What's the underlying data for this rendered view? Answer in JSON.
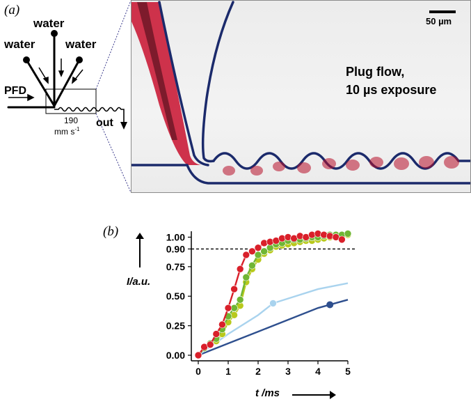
{
  "panel_a": {
    "label": "(a)",
    "schematic": {
      "water_top": "water",
      "water_left": "water",
      "water_right": "water",
      "pfd": "PFD",
      "speed_value": "190",
      "speed_unit": "mm s",
      "speed_unit_exp": "-1",
      "out": "out"
    },
    "photo": {
      "scale_bar_label": "50 µm",
      "caption_line1": "Plug flow,",
      "caption_line2": "10 µs exposure"
    }
  },
  "panel_b": {
    "label": "(b)"
  },
  "chart_data": {
    "type": "line",
    "xlabel": "t /ms",
    "ylabel": "I/a.u.",
    "xlim": [
      0,
      5
    ],
    "ylim": [
      0,
      1.05
    ],
    "x_ticks": [
      0,
      1,
      2,
      3,
      4,
      5
    ],
    "y_ticks": [
      0.0,
      0.25,
      0.5,
      0.75,
      0.9,
      1.0
    ],
    "y_tick_labels": [
      "0.00",
      "0.25",
      "0.50",
      "0.75",
      "0.90",
      "1.00"
    ],
    "reference_line": {
      "y": 0.9,
      "style": "dashed"
    },
    "grid": false,
    "series": [
      {
        "color": "#2e4f8e",
        "marker_x": [
          4.4
        ],
        "x": [
          0,
          1,
          2,
          3,
          4,
          5
        ],
        "y": [
          0.0,
          0.1,
          0.2,
          0.3,
          0.4,
          0.47
        ]
      },
      {
        "color": "#a9d3ee",
        "marker_x": [
          2.5
        ],
        "x": [
          0,
          1,
          2,
          2.5,
          3,
          4,
          5
        ],
        "y": [
          0.0,
          0.18,
          0.34,
          0.44,
          0.48,
          0.56,
          0.61
        ]
      },
      {
        "color": "#b8c91c",
        "marker_x": "all",
        "x": [
          0,
          0.2,
          0.4,
          0.6,
          0.8,
          1.0,
          1.2,
          1.4,
          1.6,
          1.8,
          2.0,
          2.2,
          2.4,
          2.6,
          2.8,
          3.0,
          3.2,
          3.4,
          3.6,
          3.8,
          4.0,
          4.2,
          4.4,
          4.6,
          4.8,
          5.0
        ],
        "y": [
          0.0,
          0.06,
          0.09,
          0.12,
          0.18,
          0.28,
          0.34,
          0.42,
          0.62,
          0.73,
          0.81,
          0.86,
          0.89,
          0.92,
          0.93,
          0.94,
          0.95,
          0.96,
          0.97,
          0.97,
          0.98,
          0.99,
          1.0,
          1.0,
          1.01,
          1.02
        ]
      },
      {
        "color": "#6fb635",
        "marker_x": "all",
        "x": [
          0,
          0.2,
          0.4,
          0.6,
          0.8,
          1.0,
          1.2,
          1.4,
          1.6,
          1.8,
          2.0,
          2.2,
          2.4,
          2.6,
          2.8,
          3.0,
          3.2,
          3.4,
          3.6,
          3.8,
          4.0,
          4.2,
          4.4,
          4.6,
          4.8,
          5.0
        ],
        "y": [
          0.0,
          0.06,
          0.1,
          0.14,
          0.22,
          0.33,
          0.4,
          0.47,
          0.66,
          0.76,
          0.85,
          0.88,
          0.91,
          0.94,
          0.95,
          0.97,
          0.98,
          0.98,
          0.99,
          1.0,
          1.0,
          1.01,
          1.02,
          1.02,
          1.02,
          1.03
        ]
      },
      {
        "color": "#d9202a",
        "marker_x": "all",
        "x": [
          0,
          0.2,
          0.4,
          0.6,
          0.8,
          1.0,
          1.2,
          1.4,
          1.6,
          1.8,
          2.0,
          2.2,
          2.4,
          2.6,
          2.8,
          3.0,
          3.2,
          3.4,
          3.6,
          3.8,
          4.0,
          4.2,
          4.4,
          4.6,
          4.8
        ],
        "y": [
          0.0,
          0.07,
          0.09,
          0.18,
          0.26,
          0.4,
          0.56,
          0.73,
          0.85,
          0.88,
          0.91,
          0.95,
          0.96,
          0.97,
          0.99,
          1.0,
          0.99,
          1.01,
          1.0,
          1.02,
          1.03,
          1.02,
          1.01,
          1.0,
          0.98
        ]
      }
    ]
  }
}
